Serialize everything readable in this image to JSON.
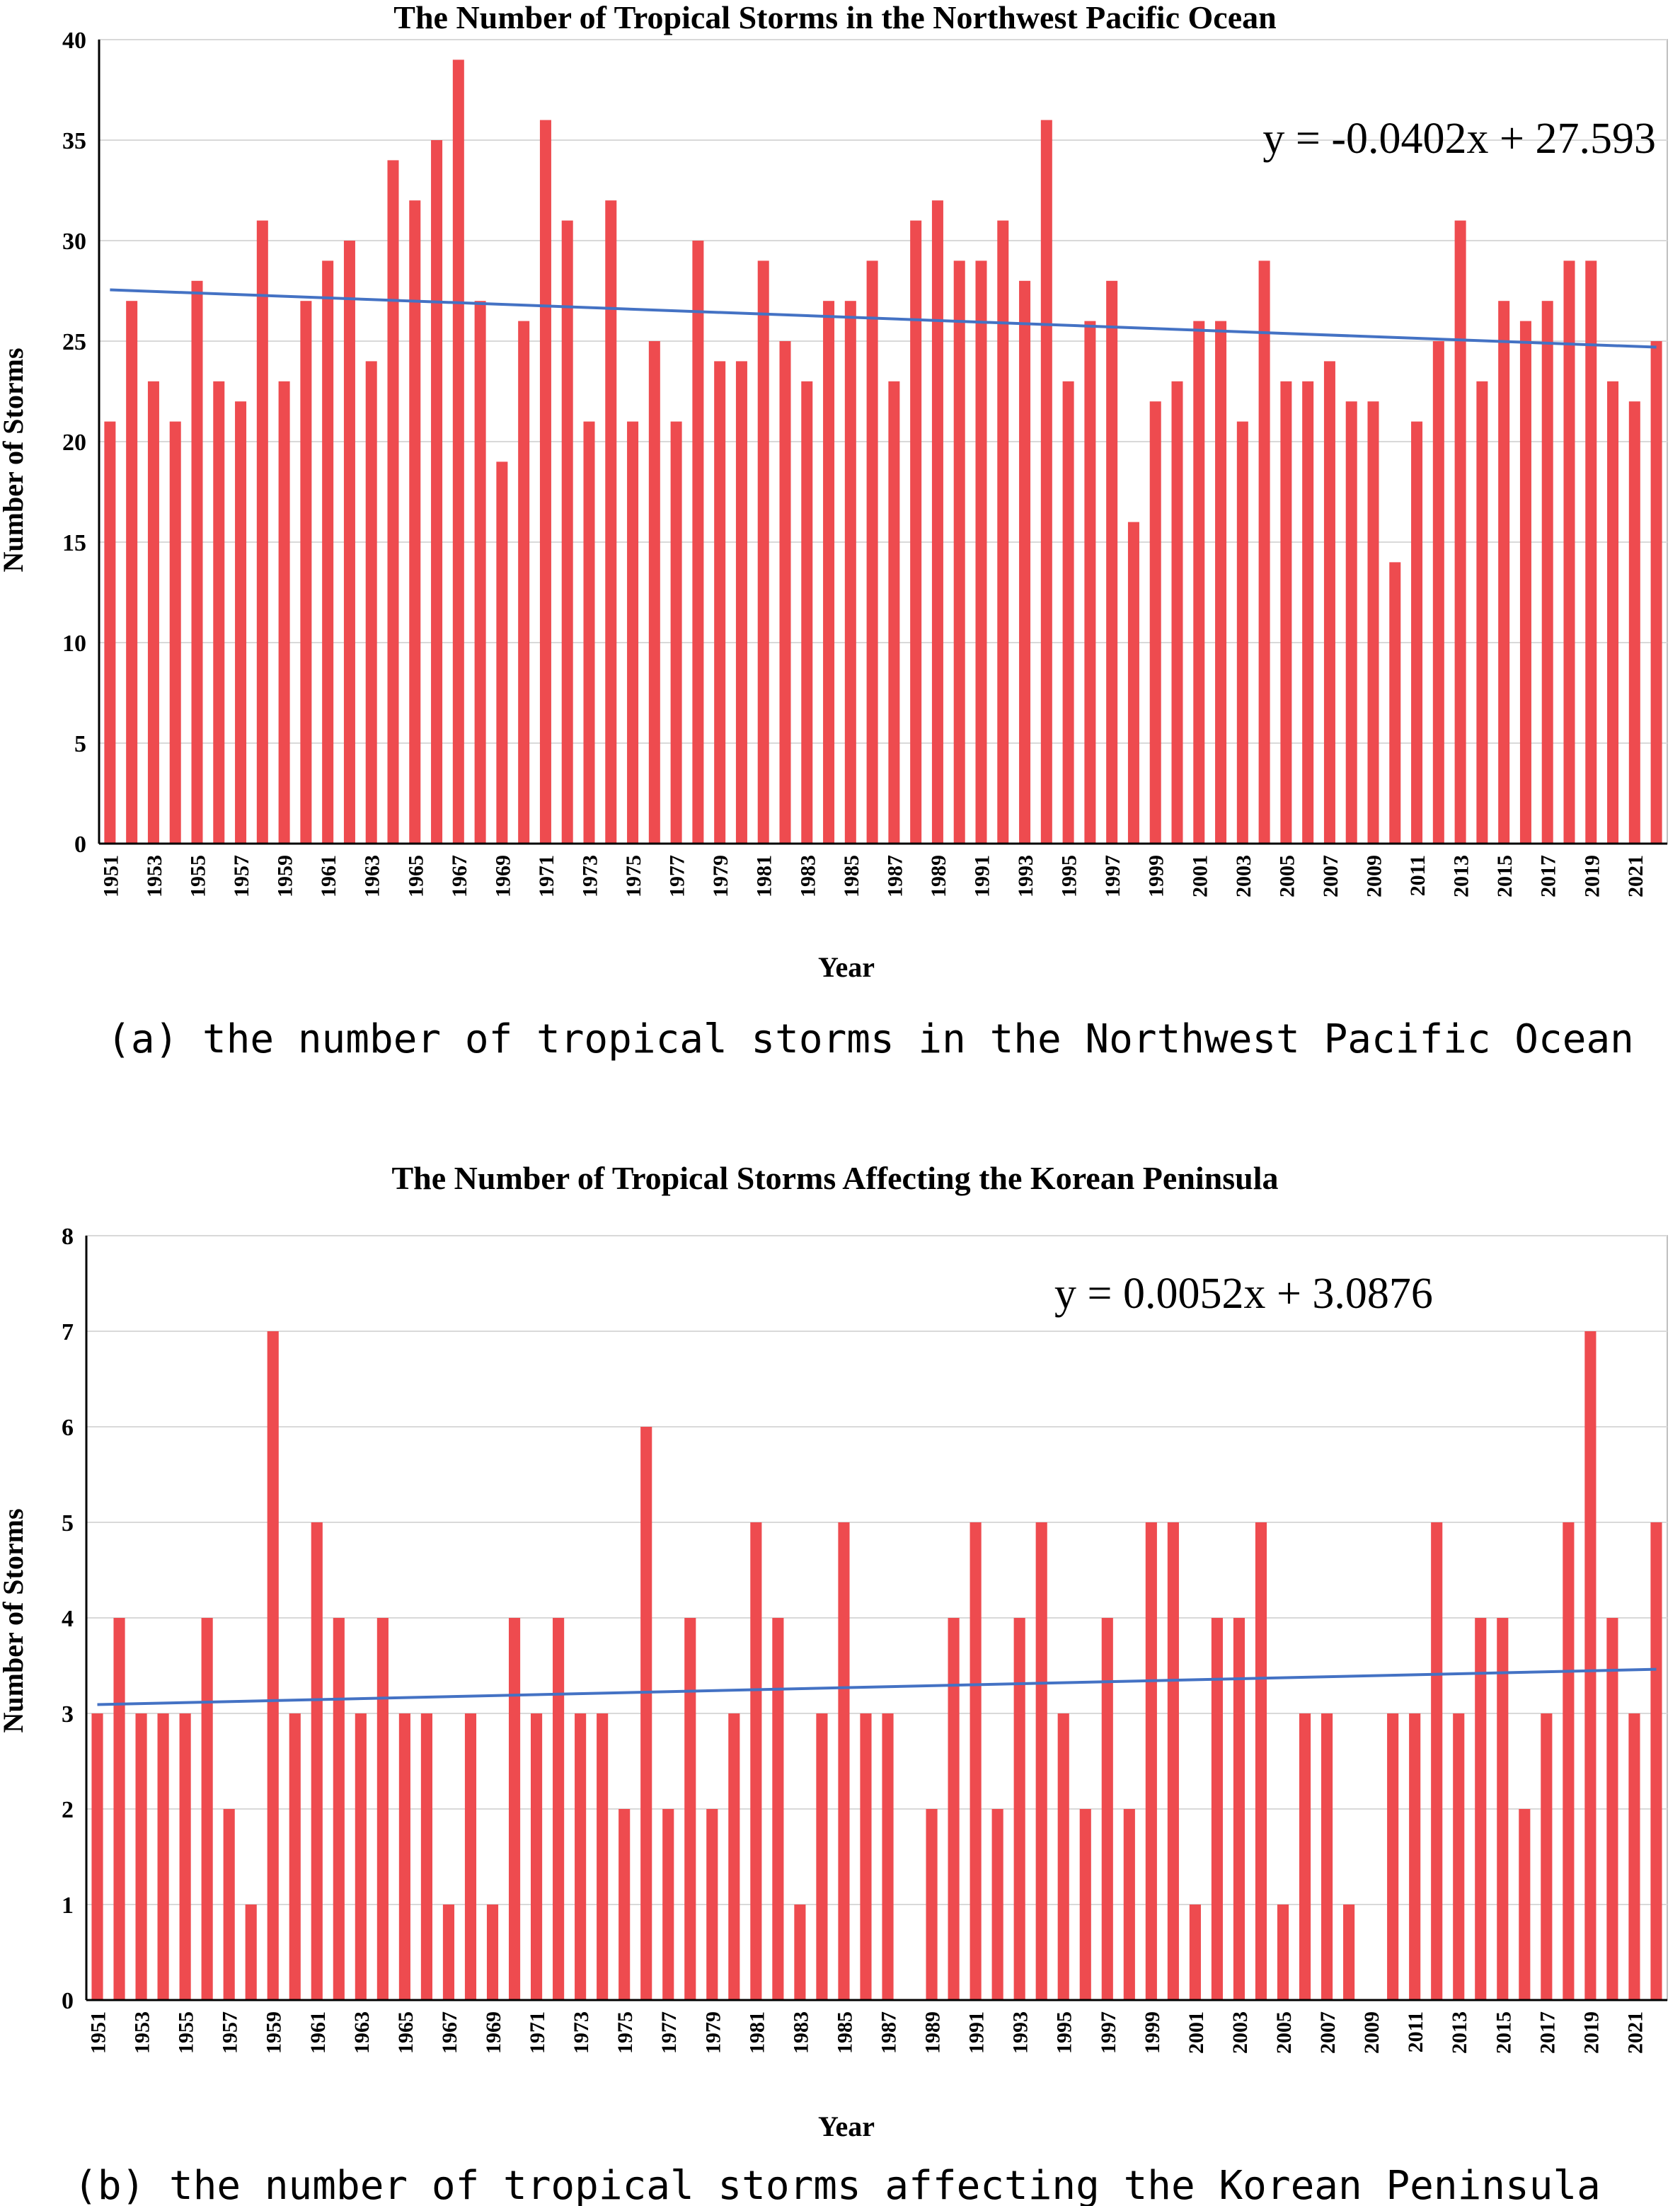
{
  "chart_data": [
    {
      "type": "bar",
      "title": "The Number of Tropical Storms in the Northwest Pacific Ocean",
      "xlabel": "Year",
      "ylabel": "Number of Storms",
      "ylim": [
        0,
        40
      ],
      "yticks": [
        0,
        5,
        10,
        15,
        20,
        25,
        30,
        35,
        40
      ],
      "x_start": 1951,
      "categories": [
        1951,
        1952,
        1953,
        1954,
        1955,
        1956,
        1957,
        1958,
        1959,
        1960,
        1961,
        1962,
        1963,
        1964,
        1965,
        1966,
        1967,
        1968,
        1969,
        1970,
        1971,
        1972,
        1973,
        1974,
        1975,
        1976,
        1977,
        1978,
        1979,
        1980,
        1981,
        1982,
        1983,
        1984,
        1985,
        1986,
        1987,
        1988,
        1989,
        1990,
        1991,
        1992,
        1993,
        1994,
        1995,
        1996,
        1997,
        1998,
        1999,
        2000,
        2001,
        2002,
        2003,
        2004,
        2005,
        2006,
        2007,
        2008,
        2009,
        2010,
        2011,
        2012,
        2013,
        2014,
        2015,
        2016,
        2017,
        2018,
        2019,
        2020,
        2021,
        2022
      ],
      "tick_labels": [
        "1951",
        "1953",
        "1955",
        "1957",
        "1959",
        "1961",
        "1963",
        "1965",
        "1967",
        "1969",
        "1971",
        "1973",
        "1975",
        "1977",
        "1979",
        "1981",
        "1983",
        "1985",
        "1987",
        "1989",
        "1991",
        "1993",
        "1995",
        "1997",
        "1999",
        "2001",
        "2003",
        "2005",
        "2007",
        "2009",
        "2011",
        "2013",
        "2015",
        "2017",
        "2019",
        "2021"
      ],
      "values": [
        21,
        27,
        23,
        21,
        28,
        23,
        22,
        31,
        23,
        27,
        29,
        30,
        24,
        34,
        32,
        35,
        39,
        27,
        19,
        26,
        36,
        31,
        21,
        32,
        21,
        25,
        21,
        30,
        24,
        24,
        29,
        25,
        23,
        27,
        27,
        29,
        23,
        31,
        32,
        29,
        29,
        31,
        28,
        36,
        23,
        26,
        28,
        16,
        22,
        23,
        26,
        26,
        21,
        29,
        23,
        23,
        24,
        22,
        22,
        14,
        21,
        25,
        31,
        23,
        27,
        26,
        27,
        29,
        29,
        23,
        22,
        25
      ],
      "trendline": {
        "equation": "y = -0.0402x + 27.593",
        "slope": -0.0402,
        "intercept": 27.593
      },
      "bar_color": "#EE4B4F",
      "trend_color": "#4472C4",
      "grid": "horizontal",
      "caption": "(a) the number of tropical storms in the Northwest Pacific Ocean"
    },
    {
      "type": "bar",
      "title": "The Number of Tropical Storms Affecting the Korean Peninsula",
      "xlabel": "Year",
      "ylabel": "Number of Storms",
      "ylim": [
        0,
        8
      ],
      "yticks": [
        0,
        1,
        2,
        3,
        4,
        5,
        6,
        7,
        8
      ],
      "x_start": 1951,
      "categories": [
        1951,
        1952,
        1953,
        1954,
        1955,
        1956,
        1957,
        1958,
        1959,
        1960,
        1961,
        1962,
        1963,
        1964,
        1965,
        1966,
        1967,
        1968,
        1969,
        1970,
        1971,
        1972,
        1973,
        1974,
        1975,
        1976,
        1977,
        1978,
        1979,
        1980,
        1981,
        1982,
        1983,
        1984,
        1985,
        1986,
        1987,
        1988,
        1989,
        1990,
        1991,
        1992,
        1993,
        1994,
        1995,
        1996,
        1997,
        1998,
        1999,
        2000,
        2001,
        2002,
        2003,
        2004,
        2005,
        2006,
        2007,
        2008,
        2009,
        2010,
        2011,
        2012,
        2013,
        2014,
        2015,
        2016,
        2017,
        2018,
        2019,
        2020,
        2021,
        2022
      ],
      "tick_labels": [
        "1951",
        "1953",
        "1955",
        "1957",
        "1959",
        "1961",
        "1963",
        "1965",
        "1967",
        "1969",
        "1971",
        "1973",
        "1975",
        "1977",
        "1979",
        "1981",
        "1983",
        "1985",
        "1987",
        "1989",
        "1991",
        "1993",
        "1995",
        "1997",
        "1999",
        "2001",
        "2003",
        "2005",
        "2007",
        "2009",
        "2011",
        "2013",
        "2015",
        "2017",
        "2019",
        "2021"
      ],
      "values": [
        3,
        4,
        3,
        3,
        3,
        4,
        2,
        1,
        7,
        3,
        5,
        4,
        3,
        4,
        3,
        3,
        1,
        3,
        1,
        4,
        3,
        4,
        3,
        3,
        2,
        6,
        2,
        4,
        2,
        3,
        5,
        4,
        1,
        3,
        5,
        3,
        3,
        0,
        2,
        4,
        5,
        2,
        4,
        5,
        3,
        2,
        4,
        2,
        5,
        5,
        1,
        4,
        4,
        5,
        1,
        3,
        3,
        1,
        0,
        3,
        3,
        5,
        3,
        4,
        4,
        2,
        3,
        5,
        7,
        4,
        3,
        5
      ],
      "trendline": {
        "equation": "y = 0.0052x + 3.0876",
        "slope": 0.0052,
        "intercept": 3.0876
      },
      "bar_color": "#EE4B4F",
      "trend_color": "#4472C4",
      "grid": "horizontal",
      "caption": "(b) the number of tropical storms affecting the Korean Peninsula"
    }
  ]
}
